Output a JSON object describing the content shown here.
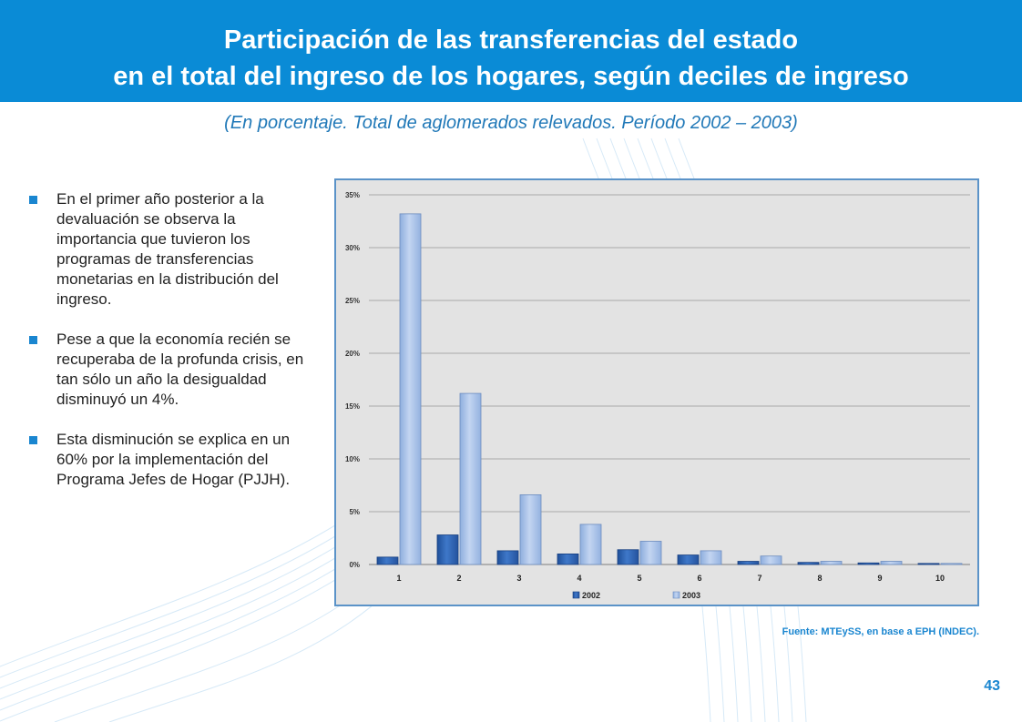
{
  "header": {
    "title_line1": "Participación de las transferencias del estado",
    "title_line2": "en el total del ingreso de los hogares, según deciles de ingreso",
    "subtitle": "(En porcentaje. Total de aglomerados relevados. Período 2002 – 2003)"
  },
  "bullets": [
    "En el primer año posterior a la devaluación se observa la importancia que tuvieron los programas de transferencias monetarias en la distribución del ingreso.",
    "Pese a que la economía recién se recuperaba de la profunda crisis, en tan sólo un año la desigualdad disminuyó un 4%.",
    "Esta disminución se explica en un 60% por la implementación del Programa Jefes de Hogar (PJJH)."
  ],
  "chart_data": {
    "type": "bar",
    "title": "",
    "xlabel": "",
    "ylabel": "",
    "categories": [
      "1",
      "2",
      "3",
      "4",
      "5",
      "6",
      "7",
      "8",
      "9",
      "10"
    ],
    "series": [
      {
        "name": "2002",
        "values": [
          0.7,
          2.8,
          1.3,
          1.0,
          1.4,
          0.9,
          0.3,
          0.2,
          0.15,
          0.1
        ]
      },
      {
        "name": "2003",
        "values": [
          33.2,
          16.2,
          6.6,
          3.8,
          2.2,
          1.3,
          0.8,
          0.3,
          0.3,
          0.1
        ]
      }
    ],
    "ylim": [
      0,
      35
    ],
    "yticks": [
      "0%",
      "5%",
      "10%",
      "15%",
      "20%",
      "25%",
      "30%",
      "35%"
    ],
    "grid": true,
    "legend_position": "bottom",
    "colors": {
      "2002": "#2e62ad",
      "2003": "#a3bde6"
    }
  },
  "source": "Fuente: MTEySS, en base a EPH (INDEC).",
  "page_number": "43",
  "colors": {
    "header_bg": "#0a8bd6",
    "accent": "#1a86d0",
    "chart_frame": "#5b93c8",
    "chart_bg": "#e3e3e3"
  }
}
